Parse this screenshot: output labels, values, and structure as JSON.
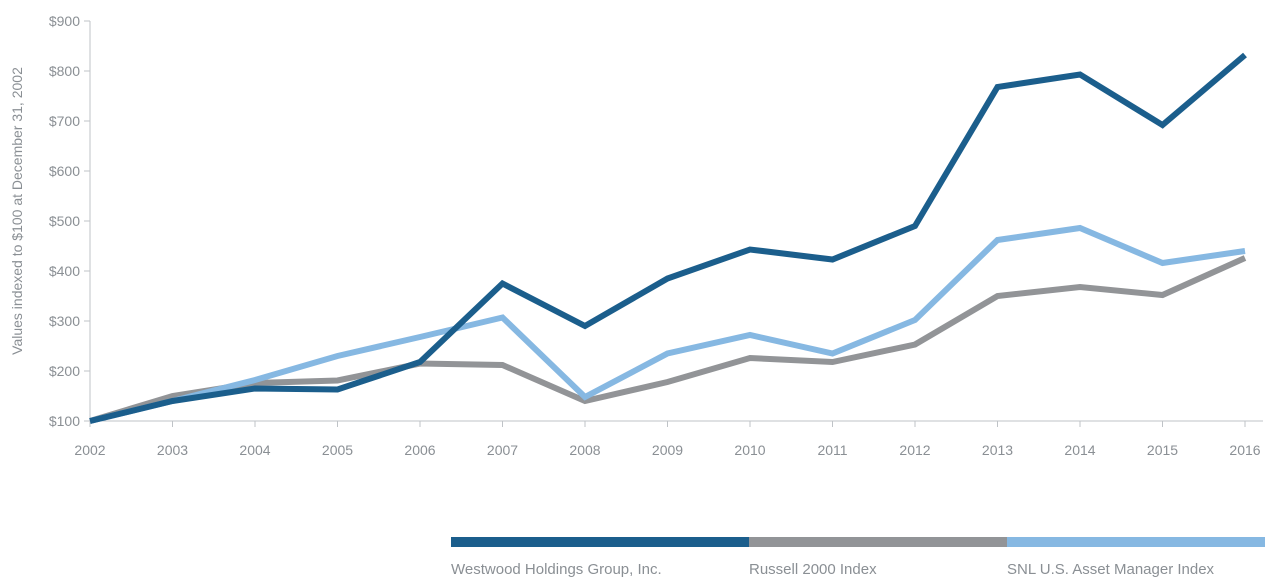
{
  "chart_data": {
    "type": "line",
    "title": "",
    "xlabel": "",
    "ylabel": "Values indexed to $100 at December 31, 2002",
    "categories": [
      "2002",
      "2003",
      "2004",
      "2005",
      "2006",
      "2007",
      "2008",
      "2009",
      "2010",
      "2011",
      "2012",
      "2013",
      "2014",
      "2015",
      "2016"
    ],
    "y_ticks": [
      "$100",
      "$200",
      "$300",
      "$400",
      "$500",
      "$600",
      "$700",
      "$800",
      "$900"
    ],
    "ylim": [
      100,
      900
    ],
    "grid": false,
    "legend_position": "bottom-right",
    "series": [
      {
        "name": "Westwood Holdings Group, Inc.",
        "color": "#1b5e8c",
        "values": [
          100,
          140,
          165,
          163,
          218,
          375,
          290,
          385,
          443,
          423,
          490,
          768,
          793,
          692,
          832
        ]
      },
      {
        "name": "Russell 2000 Index",
        "color": "#929497",
        "values": [
          100,
          150,
          176,
          181,
          215,
          212,
          140,
          178,
          226,
          218,
          253,
          350,
          368,
          352,
          426
        ]
      },
      {
        "name": "SNL U.S. Asset Manager Index",
        "color": "#86b8e2",
        "values": [
          100,
          140,
          182,
          230,
          268,
          307,
          148,
          235,
          272,
          235,
          302,
          462,
          486,
          416,
          440
        ]
      }
    ]
  }
}
